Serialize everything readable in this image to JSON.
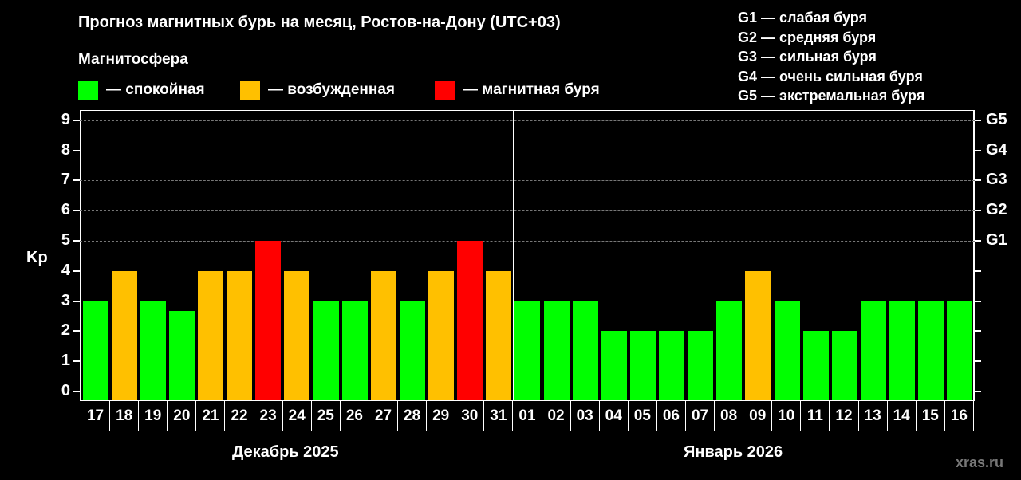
{
  "title": "Прогноз магнитных бурь на месяц, Ростов-на-Дону (UTC+03)",
  "subtitle": "Магнитосфера",
  "legend": [
    {
      "label": "— спокойная",
      "color": "#00ff00"
    },
    {
      "label": "— возбужденная",
      "color": "#ffc000"
    },
    {
      "label": "— магнитная буря",
      "color": "#ff0000"
    }
  ],
  "g_legend": [
    "G1 — слабая буря",
    "G2 — средняя буря",
    "G3 — сильная буря",
    "G4 — очень сильная буря",
    "G5 — экстремальная буря"
  ],
  "ylabel": "Kp",
  "months": [
    "Декабрь 2025",
    "Январь 2026"
  ],
  "watermark": "xras.ru",
  "chart_data": {
    "type": "bar",
    "title": "Прогноз магнитных бурь на месяц, Ростов-на-Дону (UTC+03)",
    "xlabel": "Декабрь 2025 / Январь 2026",
    "ylabel": "Kp",
    "ylim": [
      0,
      9
    ],
    "yticks": [
      0,
      1,
      2,
      3,
      4,
      5,
      6,
      7,
      8,
      9
    ],
    "right_ticks": [
      {
        "kp": 5,
        "label": "G1"
      },
      {
        "kp": 6,
        "label": "G2"
      },
      {
        "kp": 7,
        "label": "G3"
      },
      {
        "kp": 8,
        "label": "G4"
      },
      {
        "kp": 9,
        "label": "G5"
      }
    ],
    "grid": "dashed horizontal at Kp 5-9",
    "categories": [
      "17",
      "18",
      "19",
      "20",
      "21",
      "22",
      "23",
      "24",
      "25",
      "26",
      "27",
      "28",
      "29",
      "30",
      "31",
      "01",
      "02",
      "03",
      "04",
      "05",
      "06",
      "07",
      "08",
      "09",
      "10",
      "11",
      "12",
      "13",
      "14",
      "15",
      "16"
    ],
    "values": [
      3,
      4,
      3,
      2.67,
      4,
      4,
      5,
      4,
      3,
      3,
      4,
      3,
      4,
      5,
      4,
      3,
      3,
      3,
      2,
      2,
      2,
      2,
      3,
      4,
      3,
      2,
      2,
      3,
      3,
      3,
      3
    ],
    "status": [
      "calm",
      "active",
      "calm",
      "calm",
      "active",
      "active",
      "storm",
      "active",
      "calm",
      "calm",
      "active",
      "calm",
      "active",
      "storm",
      "active",
      "calm",
      "calm",
      "calm",
      "calm",
      "calm",
      "calm",
      "calm",
      "calm",
      "active",
      "calm",
      "calm",
      "calm",
      "calm",
      "calm",
      "calm",
      "calm"
    ],
    "status_colors": {
      "calm": "#00ff00",
      "active": "#ffc000",
      "storm": "#ff0000"
    },
    "legend": [
      "— спокойная",
      "— возбужденная",
      "— магнитная буря"
    ]
  }
}
